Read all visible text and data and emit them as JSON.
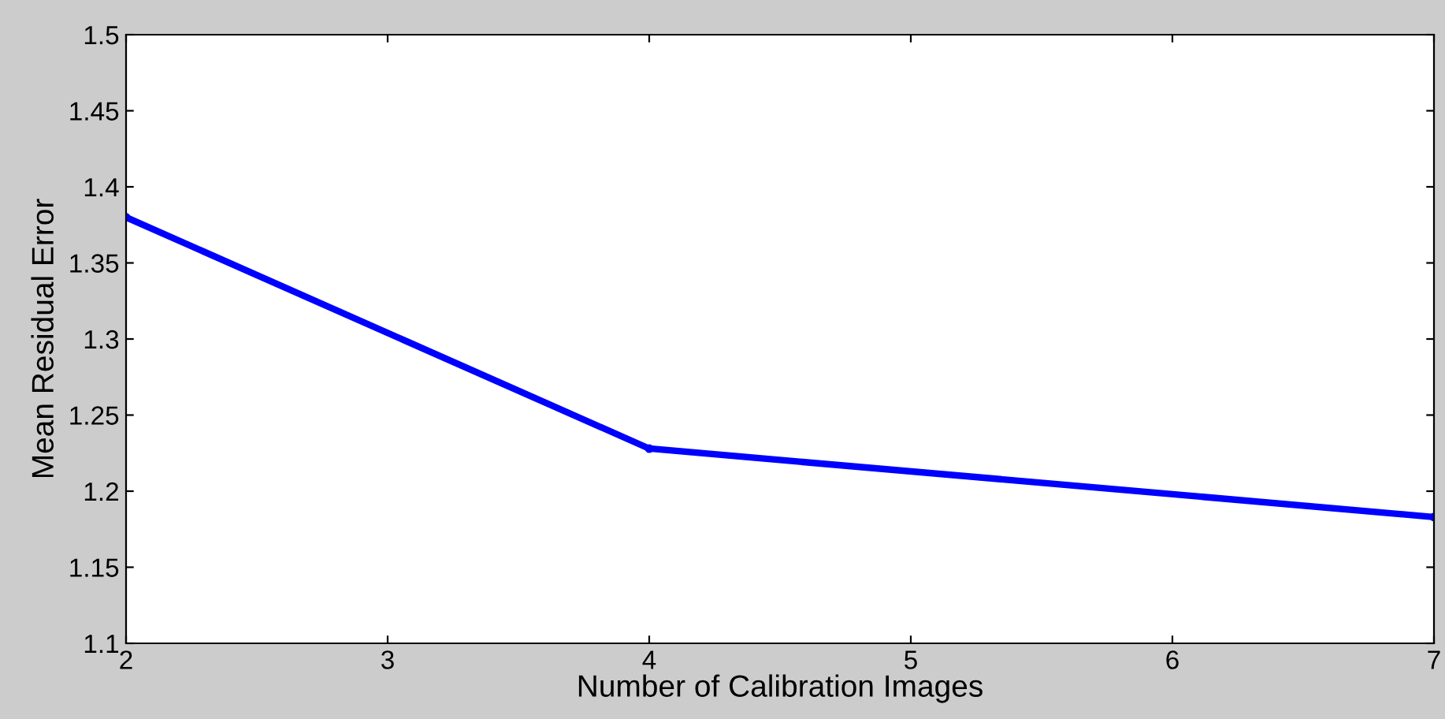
{
  "chart_data": {
    "type": "line",
    "xlabel": "Number of Calibration Images",
    "ylabel": "Mean Residual Error",
    "x": [
      2,
      4,
      7
    ],
    "series": [
      {
        "color": "#0000ff",
        "values": [
          1.38,
          1.228,
          1.183
        ]
      }
    ],
    "xlim": [
      2,
      7
    ],
    "xticks": [
      2,
      3,
      4,
      5,
      6,
      7
    ],
    "ylim": [
      1.1,
      1.5
    ],
    "yticks": [
      1.1,
      1.15,
      1.2,
      1.25,
      1.3,
      1.35,
      1.4,
      1.45,
      1.5
    ],
    "grid": false,
    "marker": "circle",
    "line_style": "solid"
  }
}
